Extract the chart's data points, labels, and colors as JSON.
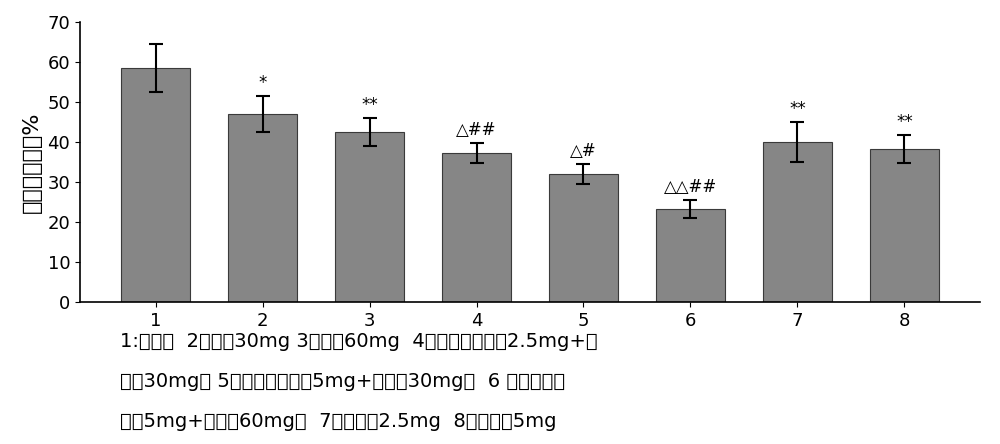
{
  "categories": [
    "1",
    "2",
    "3",
    "4",
    "5",
    "6",
    "7",
    "8"
  ],
  "values": [
    58.5,
    47.0,
    42.5,
    37.2,
    32.0,
    23.2,
    40.0,
    38.2
  ],
  "errors": [
    6.0,
    4.5,
    3.5,
    2.5,
    2.5,
    2.2,
    5.0,
    3.5
  ],
  "bar_color": "#868686",
  "bar_edge_color": "#3a3a3a",
  "annotations": [
    "",
    "*",
    "**",
    "△##",
    "△#",
    "△△##",
    "**",
    "**"
  ],
  "ylabel": "血小板凝集率%",
  "ylim": [
    0,
    70
  ],
  "yticks": [
    0,
    10,
    20,
    30,
    40,
    50,
    60,
    70
  ],
  "annotation_fontsize": 12,
  "ylabel_fontsize": 16,
  "tick_fontsize": 13,
  "caption_fontsize": 14,
  "caption_line1": "1:正常组  2蚁激酶30mg 3蚁激酶60mg  4复方（阿啊沙班2.5mg+蚁",
  "caption_line2": "激酶30mg） 5复方（阿啊沙班5mg+蚁激酶30mg）  6 复方（阿啊",
  "caption_line3": "沙班5mg+蚁激酶60mg）  7阿啊沙班2.5mg  8阿啊沙班5mg",
  "background_color": "#ffffff",
  "bar_width": 0.65,
  "figsize": [
    10.0,
    4.44
  ],
  "dpi": 100
}
